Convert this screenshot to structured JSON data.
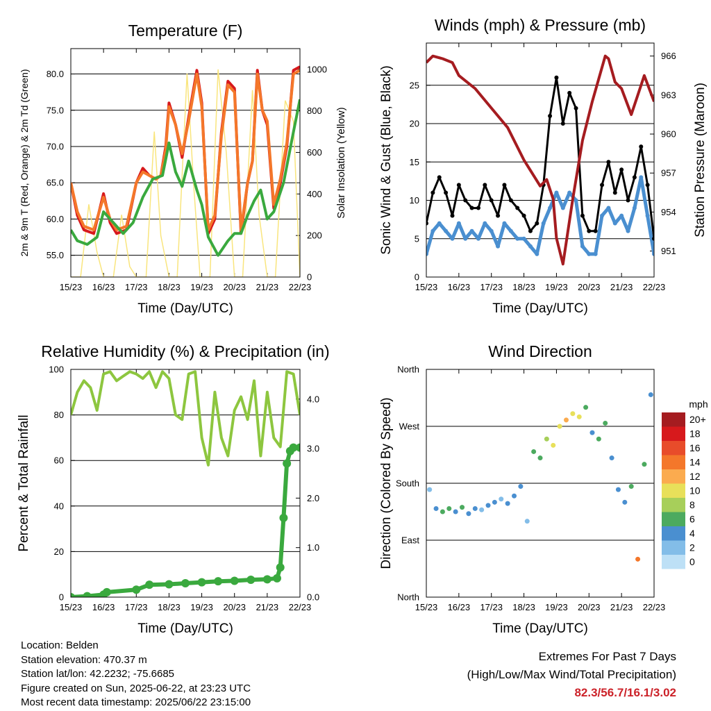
{
  "chart_data": [
    {
      "type": "line",
      "title": "Temperature (F)",
      "xlabel": "Time (Day/UTC)",
      "ylabel": "2m & 9m T (Red, Orange) & 2m Td (Green)",
      "ylabel_right": "Solar Insolation (Yellow)",
      "x_ticks": [
        "15/23",
        "16/23",
        "17/23",
        "18/23",
        "19/23",
        "20/23",
        "21/23",
        "22/23"
      ],
      "ylim": [
        52.0,
        83.5
      ],
      "y_ticks": [
        "55.0",
        "60.0",
        "65.0",
        "70.0",
        "75.0",
        "80.0"
      ],
      "ylim_right": [
        0,
        1100
      ],
      "y_ticks_right": [
        "0",
        "200",
        "400",
        "600",
        "800",
        "1000"
      ],
      "grid": true,
      "series": [
        {
          "name": "2m T",
          "color": "#d7191c",
          "x": [
            0,
            0.2,
            0.4,
            0.7,
            1.0,
            1.2,
            1.4,
            1.7,
            2.0,
            2.2,
            2.4,
            2.6,
            2.75,
            2.9,
            3.0,
            3.2,
            3.4,
            3.6,
            3.85,
            4.0,
            4.2,
            4.4,
            4.6,
            4.8,
            5.0,
            5.2,
            5.4,
            5.55,
            5.7,
            5.85,
            6.0,
            6.2,
            6.4,
            6.6,
            6.8,
            7.0
          ],
          "values": [
            65.0,
            60.5,
            58.5,
            58.0,
            63.5,
            59.5,
            58.0,
            58.5,
            65.0,
            67.0,
            66.0,
            65.5,
            66.0,
            70.0,
            76.0,
            73.0,
            68.5,
            74.0,
            80.5,
            76.0,
            58.0,
            60.0,
            72.0,
            79.0,
            78.0,
            58.0,
            65.0,
            68.0,
            80.5,
            75.0,
            73.0,
            61.5,
            65.0,
            70.0,
            80.5,
            81.0
          ]
        },
        {
          "name": "9m T",
          "color": "#f4772a",
          "x": [
            0,
            0.2,
            0.4,
            0.7,
            1.0,
            1.2,
            1.4,
            1.7,
            2.0,
            2.2,
            2.4,
            2.6,
            2.75,
            2.9,
            3.0,
            3.2,
            3.4,
            3.6,
            3.85,
            4.0,
            4.2,
            4.4,
            4.6,
            4.8,
            5.0,
            5.2,
            5.4,
            5.55,
            5.7,
            5.85,
            6.0,
            6.2,
            6.4,
            6.6,
            6.8,
            7.0
          ],
          "values": [
            65.0,
            61.0,
            59.0,
            58.5,
            63.0,
            60.0,
            58.5,
            59.0,
            65.0,
            66.5,
            66.0,
            65.5,
            66.0,
            69.5,
            75.5,
            73.0,
            69.0,
            73.5,
            80.0,
            75.5,
            58.5,
            60.5,
            71.5,
            78.5,
            77.5,
            58.5,
            65.0,
            68.0,
            80.0,
            75.0,
            73.5,
            62.0,
            65.5,
            70.5,
            80.0,
            80.5
          ]
        },
        {
          "name": "2m Td",
          "color": "#3aa93e",
          "x": [
            0,
            0.2,
            0.5,
            0.8,
            1.0,
            1.3,
            1.6,
            1.9,
            2.2,
            2.5,
            2.8,
            3.0,
            3.2,
            3.4,
            3.6,
            3.85,
            4.0,
            4.2,
            4.5,
            4.8,
            5.0,
            5.2,
            5.4,
            5.6,
            5.8,
            6.0,
            6.2,
            6.5,
            6.8,
            7.0
          ],
          "values": [
            58.5,
            57.0,
            56.5,
            57.5,
            61.0,
            59.5,
            58.0,
            59.5,
            63.0,
            65.5,
            66.0,
            70.5,
            66.5,
            64.5,
            68.0,
            64.0,
            62.0,
            57.5,
            55.0,
            57.0,
            58.0,
            58.0,
            60.5,
            62.5,
            64.0,
            60.0,
            61.0,
            65.0,
            72.0,
            76.5
          ]
        }
      ],
      "series_right": [
        {
          "name": "Solar Insolation",
          "color": "#f9e57d",
          "x": [
            0,
            0.3,
            0.55,
            0.8,
            1.0,
            1.3,
            1.55,
            1.8,
            2.0,
            2.3,
            2.55,
            2.75,
            3.0,
            3.25,
            3.55,
            3.75,
            3.95,
            4.25,
            4.5,
            4.75,
            5.0,
            5.25,
            5.55,
            5.75,
            6.0,
            6.25,
            6.55,
            6.8,
            7.0
          ],
          "values": [
            0,
            0,
            350,
            120,
            0,
            0,
            300,
            50,
            0,
            0,
            700,
            200,
            0,
            0,
            980,
            450,
            0,
            0,
            1000,
            600,
            0,
            0,
            900,
            300,
            0,
            0,
            850,
            750,
            0
          ]
        }
      ]
    },
    {
      "type": "scatter",
      "title": "Winds (mph) & Pressure (mb)",
      "xlabel": "Time (Day/UTC)",
      "ylabel": "Sonic Wind & Gust (Blue, Black)",
      "ylabel_right": "Station Pressure (Maroon)",
      "x_ticks": [
        "15/23",
        "16/23",
        "17/23",
        "18/23",
        "19/23",
        "20/23",
        "21/23",
        "22/23"
      ],
      "ylim": [
        0,
        30.5
      ],
      "y_ticks": [
        "0",
        "5",
        "10",
        "15",
        "20",
        "25"
      ],
      "ylim_right": [
        949.0,
        967.0
      ],
      "y_ticks_right": [
        "951",
        "954",
        "957",
        "960",
        "963",
        "966"
      ],
      "grid": true,
      "series": [
        {
          "name": "Sonic Wind",
          "color": "#4a8fd0",
          "x": [
            0,
            0.2,
            0.4,
            0.6,
            0.8,
            1.0,
            1.2,
            1.4,
            1.6,
            1.8,
            2.0,
            2.2,
            2.4,
            2.6,
            2.8,
            3.0,
            3.2,
            3.4,
            3.6,
            3.8,
            4.0,
            4.2,
            4.4,
            4.6,
            4.8,
            5.0,
            5.2,
            5.4,
            5.6,
            5.8,
            6.0,
            6.2,
            6.4,
            6.6,
            6.8,
            7.0
          ],
          "values": [
            3,
            6,
            7,
            6,
            5,
            7,
            5,
            6,
            5,
            7,
            6,
            4,
            7,
            6,
            5,
            5,
            4,
            3,
            7,
            9,
            11,
            9,
            11,
            10,
            4,
            3,
            3,
            8,
            9,
            7,
            8,
            6,
            9,
            13,
            8,
            3
          ]
        },
        {
          "name": "Gust",
          "color": "#000000",
          "x": [
            0,
            0.2,
            0.4,
            0.6,
            0.8,
            1.0,
            1.2,
            1.4,
            1.6,
            1.8,
            2.0,
            2.2,
            2.4,
            2.6,
            2.8,
            3.0,
            3.2,
            3.4,
            3.6,
            3.8,
            4.0,
            4.2,
            4.4,
            4.6,
            4.8,
            5.0,
            5.2,
            5.4,
            5.6,
            5.8,
            6.0,
            6.2,
            6.4,
            6.6,
            6.8,
            7.0
          ],
          "values": [
            7,
            11,
            13,
            11,
            8,
            12,
            10,
            9,
            9,
            12,
            10,
            8,
            12,
            10,
            9,
            8,
            6,
            7,
            12,
            21,
            26,
            20,
            24,
            22,
            8,
            6,
            6,
            12,
            15,
            11,
            14,
            10,
            13,
            17,
            12,
            5
          ]
        }
      ],
      "series_right": [
        {
          "name": "Station Pressure",
          "color": "#a51c20",
          "x": [
            0,
            0.2,
            0.5,
            0.8,
            1.0,
            1.5,
            2.0,
            2.5,
            3.0,
            3.5,
            3.7,
            3.9,
            4.0,
            4.2,
            4.5,
            4.8,
            5.1,
            5.5,
            5.6,
            5.8,
            6.0,
            6.3,
            6.5,
            6.7,
            7.0
          ],
          "values": [
            965.5,
            966.0,
            965.8,
            965.5,
            964.5,
            963.5,
            962.0,
            960.5,
            958.0,
            956.0,
            956.5,
            955.0,
            952.0,
            950.0,
            955.0,
            959.5,
            962.5,
            966.0,
            965.8,
            964.0,
            963.5,
            961.5,
            963.0,
            964.5,
            962.5
          ]
        }
      ]
    },
    {
      "type": "line",
      "title": "Relative Humidity (%) & Precipitation (in)",
      "xlabel": "Time (Day/UTC)",
      "ylabel": "Percent & Total Rainfall",
      "x_ticks": [
        "15/23",
        "16/23",
        "17/23",
        "18/23",
        "19/23",
        "20/23",
        "21/23",
        "22/23"
      ],
      "ylim": [
        0,
        100
      ],
      "y_ticks": [
        "0",
        "20",
        "40",
        "60",
        "80",
        "100"
      ],
      "ylim_right": [
        0.0,
        4.6
      ],
      "y_ticks_right": [
        "0.0",
        "1.0",
        "2.0",
        "3.0",
        "4.0"
      ],
      "grid": true,
      "series": [
        {
          "name": "Relative Humidity",
          "color": "#8dc63f",
          "x": [
            0,
            0.2,
            0.4,
            0.6,
            0.8,
            1.0,
            1.2,
            1.4,
            1.6,
            1.8,
            2.0,
            2.2,
            2.4,
            2.6,
            2.8,
            3.0,
            3.2,
            3.4,
            3.6,
            3.8,
            4.0,
            4.2,
            4.4,
            4.6,
            4.8,
            5.0,
            5.2,
            5.4,
            5.6,
            5.8,
            6.0,
            6.2,
            6.4,
            6.6,
            6.8,
            7.0
          ],
          "values": [
            80,
            90,
            95,
            92,
            82,
            98,
            99,
            95,
            97,
            99,
            98,
            96,
            99,
            92,
            99,
            96,
            80,
            78,
            98,
            99,
            70,
            58,
            90,
            70,
            62,
            82,
            88,
            78,
            95,
            62,
            90,
            70,
            66,
            99,
            98,
            80
          ]
        }
      ],
      "series_right": [
        {
          "name": "Total Precipitation",
          "color": "#3aa93e",
          "x": [
            0,
            0.5,
            1.0,
            1.1,
            2.0,
            2.4,
            3.0,
            3.5,
            4.0,
            4.5,
            5.0,
            5.5,
            6.0,
            6.3,
            6.4,
            6.5,
            6.6,
            6.7,
            6.8,
            7.0
          ],
          "values": [
            0.0,
            0.02,
            0.05,
            0.1,
            0.15,
            0.25,
            0.26,
            0.28,
            0.3,
            0.32,
            0.33,
            0.35,
            0.36,
            0.38,
            0.6,
            1.6,
            2.7,
            2.95,
            3.02,
            3.02
          ]
        }
      ]
    },
    {
      "type": "scatter",
      "title": "Wind Direction",
      "xlabel": "Time (Day/UTC)",
      "ylabel": "Direction (Colored By Speed)",
      "x_ticks": [
        "15/23",
        "16/23",
        "17/23",
        "18/23",
        "19/23",
        "20/23",
        "21/23",
        "22/23"
      ],
      "ylim": [
        0,
        360
      ],
      "y_ticks": [
        "North",
        "East",
        "South",
        "West",
        "North"
      ],
      "grid": true,
      "legend": {
        "title": "mph",
        "position": "right",
        "labels": [
          "20+",
          "18",
          "16",
          "14",
          "12",
          "10",
          "8",
          "6",
          "4",
          "2",
          "0"
        ],
        "colors": [
          "#a51c20",
          "#d7191c",
          "#e84c2a",
          "#f4772a",
          "#fbab4f",
          "#e8e05a",
          "#a7cf5a",
          "#4caa5f",
          "#4a8fd0",
          "#83bde8",
          "#bde0f6"
        ]
      },
      "points": [
        {
          "x": 0.1,
          "dir": 170,
          "speed": 3
        },
        {
          "x": 0.3,
          "dir": 140,
          "speed": 4
        },
        {
          "x": 0.5,
          "dir": 135,
          "speed": 6
        },
        {
          "x": 0.7,
          "dir": 140,
          "speed": 7
        },
        {
          "x": 0.9,
          "dir": 135,
          "speed": 5
        },
        {
          "x": 1.1,
          "dir": 142,
          "speed": 6
        },
        {
          "x": 1.3,
          "dir": 132,
          "speed": 4
        },
        {
          "x": 1.5,
          "dir": 140,
          "speed": 5
        },
        {
          "x": 1.7,
          "dir": 138,
          "speed": 3
        },
        {
          "x": 1.9,
          "dir": 145,
          "speed": 4
        },
        {
          "x": 2.1,
          "dir": 150,
          "speed": 5
        },
        {
          "x": 2.3,
          "dir": 155,
          "speed": 3
        },
        {
          "x": 2.5,
          "dir": 148,
          "speed": 4
        },
        {
          "x": 2.7,
          "dir": 160,
          "speed": 5
        },
        {
          "x": 2.9,
          "dir": 175,
          "speed": 4
        },
        {
          "x": 3.1,
          "dir": 120,
          "speed": 2
        },
        {
          "x": 3.3,
          "dir": 230,
          "speed": 6
        },
        {
          "x": 3.5,
          "dir": 220,
          "speed": 7
        },
        {
          "x": 3.7,
          "dir": 250,
          "speed": 9
        },
        {
          "x": 3.9,
          "dir": 240,
          "speed": 10
        },
        {
          "x": 4.1,
          "dir": 270,
          "speed": 11
        },
        {
          "x": 4.3,
          "dir": 280,
          "speed": 12
        },
        {
          "x": 4.5,
          "dir": 290,
          "speed": 11
        },
        {
          "x": 4.7,
          "dir": 285,
          "speed": 10
        },
        {
          "x": 4.9,
          "dir": 300,
          "speed": 6
        },
        {
          "x": 5.1,
          "dir": 260,
          "speed": 5
        },
        {
          "x": 5.3,
          "dir": 250,
          "speed": 6
        },
        {
          "x": 5.5,
          "dir": 275,
          "speed": 7
        },
        {
          "x": 5.7,
          "dir": 220,
          "speed": 4
        },
        {
          "x": 5.9,
          "dir": 170,
          "speed": 4
        },
        {
          "x": 6.1,
          "dir": 150,
          "speed": 5
        },
        {
          "x": 6.3,
          "dir": 175,
          "speed": 6
        },
        {
          "x": 6.5,
          "dir": 60,
          "speed": 14
        },
        {
          "x": 6.7,
          "dir": 210,
          "speed": 7
        },
        {
          "x": 6.9,
          "dir": 320,
          "speed": 5
        }
      ]
    }
  ],
  "info": {
    "location": "Location: Belden",
    "elevation": "Station elevation: 470.37 m",
    "latlon": "Station lat/lon: 42.2232; -75.6685",
    "created": "Figure created on Sun, 2025-06-22, at 23:23 UTC",
    "recent": "Most recent data timestamp: 2025/06/22 23:15:00"
  },
  "extremes": {
    "line1": "Extremes For Past 7 Days",
    "line2": "(High/Low/Max Wind/Total Precipitation)",
    "values": "82.3/56.7/16.1/3.02"
  }
}
